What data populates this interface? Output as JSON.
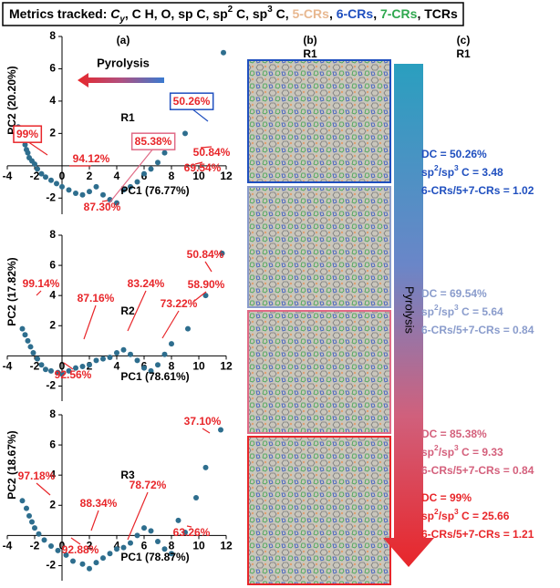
{
  "header": {
    "segments": [
      {
        "text": "Metrics tracked: "
      },
      {
        "text": "C",
        "style": "italic"
      },
      {
        "text": "y",
        "style": "sub"
      },
      {
        "text": ", C H, O, sp C, sp"
      },
      {
        "text": "2",
        "style": "sup"
      },
      {
        "text": " C, sp"
      },
      {
        "text": "3",
        "style": "sup"
      },
      {
        "text": " C, "
      },
      {
        "text": "5-CRs",
        "color": "#e8b890"
      },
      {
        "text": ", "
      },
      {
        "text": "6-CRs",
        "color": "#1f4fbf"
      },
      {
        "text": ", "
      },
      {
        "text": "7-CRs",
        "color": "#2fa84f"
      },
      {
        "text": ", TCRs"
      }
    ]
  },
  "panels": {
    "a": "(a)",
    "b": "(b)",
    "c": "(c)",
    "b_title": "R1",
    "c_title": "R1",
    "a_arrow": "Pyrolysis",
    "c_arrow": "Pyrolysis"
  },
  "chart_data": [
    {
      "type": "scatter",
      "title": "R1",
      "x_label": "PC1  (76.77%)",
      "y_label": "PC2 (20.20%)",
      "color": "#2e6e8e",
      "xlim": [
        -4,
        12
      ],
      "ylim": [
        -3,
        8
      ],
      "xticks": [
        -4,
        -2,
        0,
        2,
        4,
        6,
        8,
        10,
        12
      ],
      "yticks": [
        -2,
        2,
        4,
        6,
        8
      ],
      "x": [
        -3.2,
        -3,
        -2.9,
        -2.8,
        -2.8,
        -2.7,
        -2.6,
        -2.5,
        -2.4,
        -2.2,
        -2,
        -1.8,
        -1.5,
        -1.2,
        -0.8,
        -0.4,
        0,
        0.5,
        1,
        1.5,
        2,
        2.5,
        3,
        3.5,
        4,
        4.5,
        5,
        5.5,
        6,
        6.5,
        7,
        7.5,
        8,
        9,
        10.4,
        11.8
      ],
      "y": [
        2.4,
        2.2,
        1.9,
        2.0,
        1.6,
        1.3,
        1.0,
        0.8,
        0.5,
        0.3,
        0.1,
        -0.2,
        -0.5,
        -0.7,
        -0.9,
        -1.1,
        -1.3,
        -1.5,
        -1.7,
        -1.8,
        -1.6,
        -1.3,
        -1.8,
        -2.1,
        -2.3,
        -1.5,
        -1.3,
        -1.0,
        -0.5,
        -0.2,
        0.2,
        0.8,
        1.2,
        2.0,
        4.2,
        7.0
      ],
      "annotations": [
        {
          "text": "99%",
          "box": "#e8262a"
        },
        {
          "text": "94.12%"
        },
        {
          "text": "85.38%",
          "box": "#e06a86"
        },
        {
          "text": "87.30%"
        },
        {
          "text": "50.26%",
          "box": "#1f4fbf"
        },
        {
          "text": "50.84%"
        },
        {
          "text": "69.54%"
        }
      ]
    },
    {
      "type": "scatter",
      "title": "R2",
      "x_label": "PC1  (78.61%)",
      "y_label": "PC2 (17.82%)",
      "color": "#2e6e8e",
      "xlim": [
        -4,
        12
      ],
      "ylim": [
        -3,
        8
      ],
      "xticks": [
        -4,
        -2,
        0,
        2,
        4,
        6,
        8,
        10,
        12
      ],
      "yticks": [
        -2,
        2,
        4,
        6,
        8
      ],
      "x": [
        -2.9,
        -2.7,
        -2.5,
        -2.3,
        -2.1,
        -1.8,
        -1.5,
        -1.2,
        -0.8,
        -0.3,
        0,
        0.5,
        1,
        1.5,
        2,
        2.5,
        3,
        3.5,
        4,
        4.5,
        5,
        5.5,
        6,
        6.5,
        7,
        7.5,
        8,
        9.2,
        10.5,
        11.7
      ],
      "y": [
        1.8,
        1.4,
        1.0,
        0.6,
        0.2,
        -0.2,
        -0.6,
        -0.9,
        -1.0,
        -1.1,
        -1.2,
        -1.0,
        -0.8,
        -0.7,
        -0.6,
        -0.3,
        -0.2,
        -0.1,
        0.2,
        0.4,
        0.1,
        -0.3,
        -0.8,
        -1.0,
        -0.6,
        0.1,
        0.8,
        1.8,
        4.0,
        6.8
      ],
      "annotations": [
        {
          "text": "50.84%"
        },
        {
          "text": "99.14%"
        },
        {
          "text": "83.24%"
        },
        {
          "text": "87.16%"
        },
        {
          "text": "58.90%"
        },
        {
          "text": "73.22%"
        },
        {
          "text": "92.56%"
        }
      ]
    },
    {
      "type": "scatter",
      "title": "R3",
      "x_label": "PC1  (78.87%)",
      "y_label": "PC2 (18.67%)",
      "color": "#2e6e8e",
      "xlim": [
        -4,
        12
      ],
      "ylim": [
        -3,
        8
      ],
      "xticks": [
        -4,
        -2,
        0,
        2,
        4,
        6,
        8,
        10,
        12
      ],
      "yticks": [
        -2,
        2,
        4,
        6,
        8
      ],
      "x": [
        -2.9,
        -2.6,
        -2.4,
        -2.2,
        -2,
        -1.7,
        -1.3,
        -0.8,
        -0.3,
        0.3,
        0.8,
        1.5,
        2,
        2.5,
        3,
        3.5,
        4,
        4.5,
        5,
        5.5,
        6,
        6.5,
        7,
        7.5,
        8,
        8.5,
        9,
        9.8,
        10.5,
        11.6
      ],
      "y": [
        2.3,
        1.8,
        1.3,
        0.9,
        0.5,
        0.1,
        -0.3,
        -0.7,
        -1.0,
        -1.3,
        -1.7,
        -1.9,
        -2.2,
        -1.8,
        -1.5,
        -1.2,
        -0.9,
        -0.8,
        -0.5,
        0,
        0.5,
        0.3,
        -0.4,
        -0.9,
        -1.2,
        1.0,
        0.2,
        2.5,
        4.5,
        7.0
      ],
      "annotations": [
        {
          "text": "37.10%"
        },
        {
          "text": "97.18%"
        },
        {
          "text": "78.72%"
        },
        {
          "text": "88.34%"
        },
        {
          "text": "63.26%"
        },
        {
          "text": "92.88%"
        }
      ]
    }
  ],
  "panel_c": [
    {
      "color": "#1f4fbf",
      "lines": [
        [
          {
            "text": "DC = 50.26%"
          }
        ],
        [
          {
            "text": "sp"
          },
          {
            "text": "2",
            "style": "sup"
          },
          {
            "text": "/sp"
          },
          {
            "text": "3",
            "style": "sup"
          },
          {
            "text": " C = 3.48"
          }
        ],
        [
          {
            "text": "6-CRs/5+7-CRs = 1.02"
          }
        ]
      ]
    },
    {
      "color": "#8a9ccc",
      "lines": [
        [
          {
            "text": "DC = 69.54%"
          }
        ],
        [
          {
            "text": "sp"
          },
          {
            "text": "2",
            "style": "sup"
          },
          {
            "text": "/sp"
          },
          {
            "text": "3",
            "style": "sup"
          },
          {
            "text": " C = 5.64"
          }
        ],
        [
          {
            "text": "6-CRs/5+7-CRs = 0.84"
          }
        ]
      ]
    },
    {
      "color": "#d4607c",
      "lines": [
        [
          {
            "text": "DC = 85.38%"
          }
        ],
        [
          {
            "text": "sp"
          },
          {
            "text": "2",
            "style": "sup"
          },
          {
            "text": "/sp"
          },
          {
            "text": "3",
            "style": "sup"
          },
          {
            "text": " C = 9.33"
          }
        ],
        [
          {
            "text": "6-CRs/5+7-CRs = 0.84"
          }
        ]
      ]
    },
    {
      "color": "#e8262a",
      "lines": [
        [
          {
            "text": "DC = 99%"
          }
        ],
        [
          {
            "text": "sp"
          },
          {
            "text": "2",
            "style": "sup"
          },
          {
            "text": "/sp"
          },
          {
            "text": "3",
            "style": "sup"
          },
          {
            "text": " C = 25.66"
          }
        ],
        [
          {
            "text": "6-CRs/5+7-CRs = 1.21"
          }
        ]
      ]
    }
  ]
}
